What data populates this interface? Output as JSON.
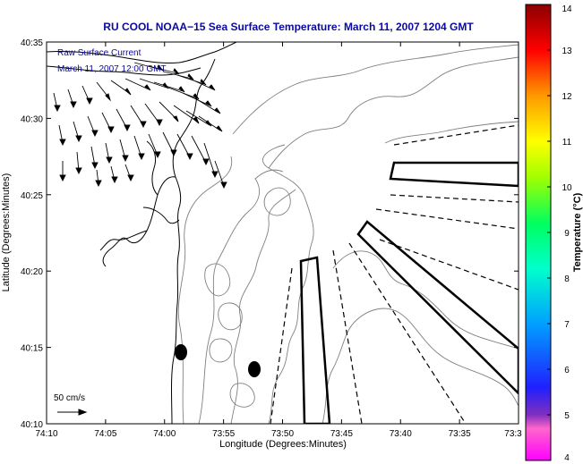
{
  "title": "RU COOL  NOAA−15  Sea Surface Temperature:  March 11, 2007 1204 GMT",
  "note_line1": "Raw Surface Current",
  "note_line2": "March 11, 2007 12:00 GMT",
  "scale_label": "50 cm/s",
  "xlabel": "Longitude (Degrees:Minutes)",
  "ylabel": "Latitude (Degrees:Minutes)",
  "x_ticks": [
    "74:10",
    "74:05",
    "74:00",
    "73:55",
    "73:50",
    "73:45",
    "73:40",
    "73:35",
    "73:3"
  ],
  "y_ticks": [
    "40:35",
    "40:30",
    "40:25",
    "40:20",
    "40:15",
    "40:10"
  ],
  "colorbar": {
    "label": "Temperature (°C)",
    "ticks": [
      "14",
      "13",
      "12",
      "11",
      "10",
      "9",
      "8",
      "7",
      "6",
      "5",
      "4"
    ],
    "min": 4,
    "max": 14
  },
  "colors": {
    "title": "#0a0aa0",
    "contour": "#808080",
    "coast": "#000000",
    "vector": "#000000"
  }
}
